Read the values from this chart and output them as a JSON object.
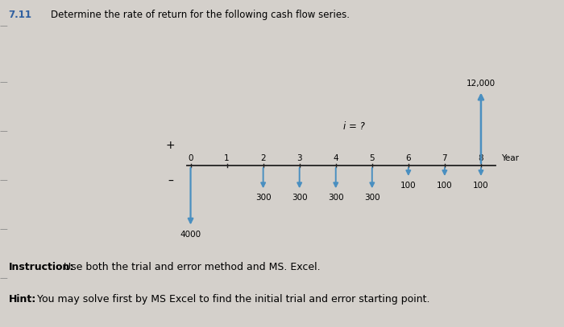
{
  "title_number": "7.11",
  "title_text": "Determine the rate of return for the following cash flow series.",
  "instruction_bold": "Instruction:",
  "instruction_rest": " Use both the trial and error method and MS. Excel.",
  "hint_bold": "Hint:",
  "hint_rest": " You may solve first by MS Excel to find the initial trial and error starting point.",
  "background_color": "#d4d0cb",
  "years": [
    0,
    1,
    2,
    3,
    4,
    5,
    6,
    7,
    8
  ],
  "year_label": "Year",
  "arrow_color": "#4a8fc0",
  "axis_color": "#222222",
  "i_label": "i = ?",
  "font_size_title": 8.5,
  "font_size_labels": 7.5,
  "font_size_annotation": 9.0,
  "font_size_iq": 8.5
}
